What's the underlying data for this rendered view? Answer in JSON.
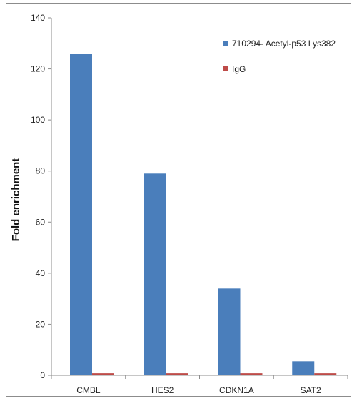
{
  "chart_data": {
    "type": "bar",
    "categories": [
      "CMBL",
      "HES2",
      "CDKN1A",
      "SAT2"
    ],
    "series": [
      {
        "name": "710294- Acetyl-p53 Lys382",
        "values": [
          126,
          79,
          34,
          5.5
        ],
        "color": "#4a7ebb"
      },
      {
        "name": "IgG",
        "values": [
          0.8,
          0.8,
          0.8,
          0.8
        ],
        "color": "#be4b48"
      }
    ],
    "ylabel": "Fold enrichment",
    "xlabel": "",
    "ylim": [
      0,
      140
    ],
    "yticks": [
      0,
      20,
      40,
      60,
      80,
      100,
      120,
      140
    ],
    "grid": false,
    "legend_position": "top-right"
  }
}
